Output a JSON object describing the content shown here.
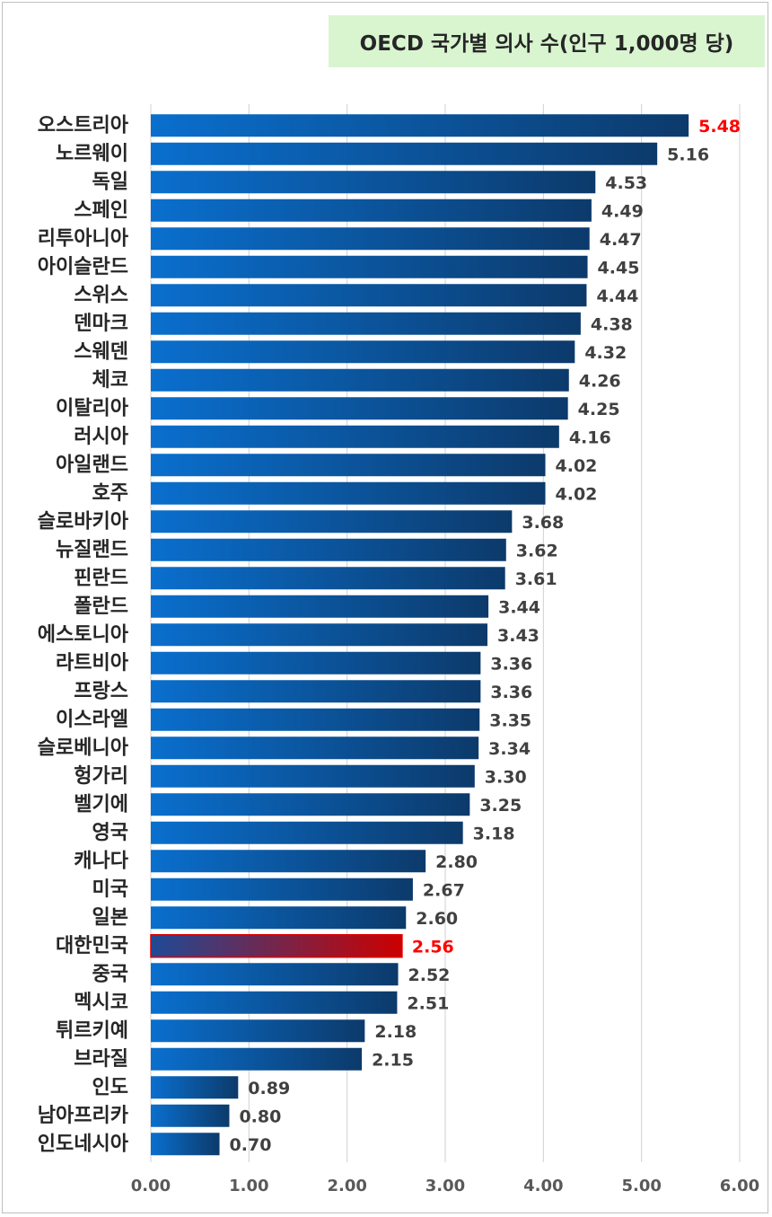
{
  "chart_data": {
    "type": "bar",
    "orientation": "horizontal",
    "title": "OECD 국가별 의사 수(인구 1,000명 당)",
    "categories": [
      "오스트리아",
      "노르웨이",
      "독일",
      "스페인",
      "리투아니아",
      "아이슬란드",
      "스위스",
      "덴마크",
      "스웨덴",
      "체코",
      "이탈리아",
      "러시아",
      "아일랜드",
      "호주",
      "슬로바키아",
      "뉴질랜드",
      "핀란드",
      "폴란드",
      "에스토니아",
      "라트비아",
      "프랑스",
      "이스라엘",
      "슬로베니아",
      "헝가리",
      "벨기에",
      "영국",
      "캐나다",
      "미국",
      "일본",
      "대한민국",
      "중국",
      "멕시코",
      "튀르키예",
      "브라질",
      "인도",
      "남아프리카",
      "인도네시아"
    ],
    "values": [
      5.48,
      5.16,
      4.53,
      4.49,
      4.47,
      4.45,
      4.44,
      4.38,
      4.32,
      4.26,
      4.25,
      4.16,
      4.02,
      4.02,
      3.68,
      3.62,
      3.61,
      3.44,
      3.43,
      3.36,
      3.36,
      3.35,
      3.34,
      3.3,
      3.25,
      3.18,
      2.8,
      2.67,
      2.6,
      2.56,
      2.52,
      2.51,
      2.18,
      2.15,
      0.89,
      0.8,
      0.7
    ],
    "value_labels": [
      "5.48",
      "5.16",
      "4.53",
      "4.49",
      "4.47",
      "4.45",
      "4.44",
      "4.38",
      "4.32",
      "4.26",
      "4.25",
      "4.16",
      "4.02",
      "4.02",
      "3.68",
      "3.62",
      "3.61",
      "3.44",
      "3.43",
      "3.36",
      "3.36",
      "3.35",
      "3.34",
      "3.30",
      "3.25",
      "3.18",
      "2.80",
      "2.67",
      "2.60",
      "2.56",
      "2.52",
      "2.51",
      "2.18",
      "2.15",
      "0.89",
      "0.80",
      "0.70"
    ],
    "highlighted": [
      "오스트리아",
      "대한민국"
    ],
    "highlight_bar": "대한민국",
    "xlim": [
      0,
      6
    ],
    "xticks": [
      "0.00",
      "1.00",
      "2.00",
      "3.00",
      "4.00",
      "5.00",
      "6.00"
    ],
    "grid": "vertical",
    "legend": "none",
    "colors": {
      "bar_start": "#0a6fce",
      "bar_end": "#0c3a6b",
      "highlight_start": "#1f4a96",
      "highlight_end": "#cc0000",
      "highlight_label": "#ff0000",
      "label": "#404040",
      "gridline": "#d0d0d0",
      "title_bg": "#d9f5d0"
    }
  }
}
